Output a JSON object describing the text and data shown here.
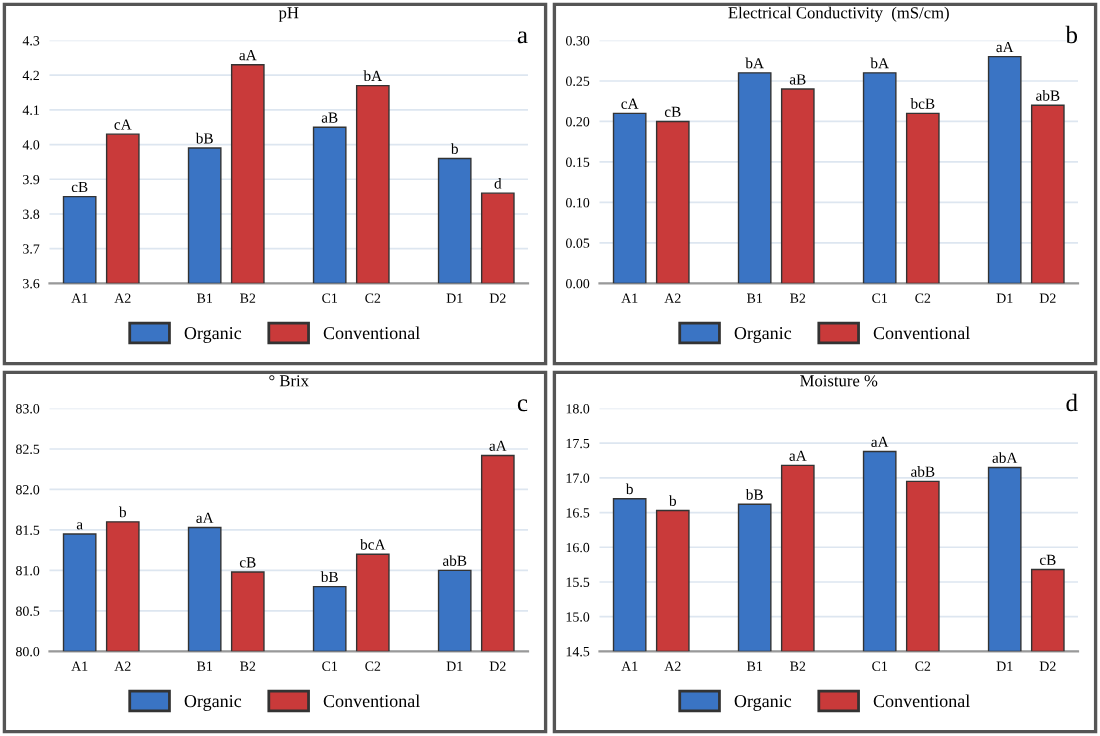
{
  "chart_data": [
    {
      "type": "bar",
      "title": "pH",
      "categories": [
        "A1",
        "A2",
        "B1",
        "B2",
        "C1",
        "C2",
        "D1",
        "D2"
      ],
      "series": [
        {
          "name": "Organic",
          "color": "#3a74c4",
          "values": [
            3.85,
            null,
            3.99,
            null,
            4.05,
            null,
            3.96,
            null
          ],
          "value_labels": [
            "cB",
            null,
            "bB",
            null,
            "aB",
            null,
            "b",
            null
          ]
        },
        {
          "name": "Conventional",
          "color": "#c93a3a",
          "values": [
            null,
            4.03,
            null,
            4.23,
            null,
            4.17,
            null,
            3.86
          ],
          "value_labels": [
            null,
            "cA",
            null,
            "aA",
            null,
            "bA",
            null,
            "d"
          ]
        }
      ],
      "ylim": [
        3.6,
        4.3
      ],
      "yticks": [
        {
          "value": 3.6,
          "label": "3.6"
        },
        {
          "value": 3.7,
          "label": "3.7"
        },
        {
          "value": 3.8,
          "label": "3.8"
        },
        {
          "value": 3.9,
          "label": "3.9"
        },
        {
          "value": 4.0,
          "label": "4.0"
        },
        {
          "value": 4.1,
          "label": "4.1"
        },
        {
          "value": 4.2,
          "label": "4.2"
        },
        {
          "value": 4.3,
          "label": "4.3"
        }
      ],
      "grid": "y",
      "legend": "bottom",
      "annotations": [
        "a"
      ]
    },
    {
      "type": "bar",
      "title": "Electrical Conductivity  (mS/cm)",
      "categories": [
        "A1",
        "A2",
        "B1",
        "B2",
        "C1",
        "C2",
        "D1",
        "D2"
      ],
      "series": [
        {
          "name": "Organic",
          "color": "#3a74c4",
          "values": [
            0.21,
            null,
            0.26,
            null,
            0.26,
            null,
            0.28,
            null
          ],
          "value_labels": [
            "cA",
            null,
            "bA",
            null,
            "bA",
            null,
            "aA",
            null
          ]
        },
        {
          "name": "Conventional",
          "color": "#c93a3a",
          "values": [
            null,
            0.2,
            null,
            0.24,
            null,
            0.21,
            null,
            0.22
          ],
          "value_labels": [
            null,
            "cB",
            null,
            "aB",
            null,
            "bcB",
            null,
            "abB"
          ]
        }
      ],
      "ylim": [
        0,
        0.3
      ],
      "yticks": [
        {
          "value": 0,
          "label": "0.00"
        },
        {
          "value": 0.05,
          "label": "0.05"
        },
        {
          "value": 0.1,
          "label": "0.10"
        },
        {
          "value": 0.15,
          "label": "0.15"
        },
        {
          "value": 0.2,
          "label": "0.20"
        },
        {
          "value": 0.25,
          "label": "0.25"
        },
        {
          "value": 0.3,
          "label": "0.30"
        }
      ],
      "grid": "y",
      "legend": "bottom",
      "annotations": [
        "b"
      ]
    },
    {
      "type": "bar",
      "title": "° Brix",
      "categories": [
        "A1",
        "A2",
        "B1",
        "B2",
        "C1",
        "C2",
        "D1",
        "D2"
      ],
      "series": [
        {
          "name": "Organic",
          "color": "#3a74c4",
          "values": [
            81.45,
            null,
            81.53,
            null,
            80.8,
            null,
            81.0,
            null
          ],
          "value_labels": [
            "a",
            null,
            "aA",
            null,
            "bB",
            null,
            "abB",
            null
          ]
        },
        {
          "name": "Conventional",
          "color": "#c93a3a",
          "values": [
            null,
            81.6,
            null,
            80.98,
            null,
            81.2,
            null,
            82.42
          ],
          "value_labels": [
            null,
            "b",
            null,
            "cB",
            null,
            "bcA",
            null,
            "aA"
          ]
        }
      ],
      "ylim": [
        80,
        83
      ],
      "yticks": [
        {
          "value": 80,
          "label": "80.0"
        },
        {
          "value": 80.5,
          "label": "80.5"
        },
        {
          "value": 81,
          "label": "81.0"
        },
        {
          "value": 81.5,
          "label": "81.5"
        },
        {
          "value": 82,
          "label": "82.0"
        },
        {
          "value": 82.5,
          "label": "82.5"
        },
        {
          "value": 83,
          "label": "83.0"
        }
      ],
      "grid": "y",
      "legend": "bottom",
      "annotations": [
        "c"
      ]
    },
    {
      "type": "bar",
      "title": "Moisture %",
      "categories": [
        "A1",
        "A2",
        "B1",
        "B2",
        "C1",
        "C2",
        "D1",
        "D2"
      ],
      "series": [
        {
          "name": "Organic",
          "color": "#3a74c4",
          "values": [
            16.7,
            null,
            16.62,
            null,
            17.38,
            null,
            17.15,
            null
          ],
          "value_labels": [
            "b",
            null,
            "bB",
            null,
            "aA",
            null,
            "abA",
            null
          ]
        },
        {
          "name": "Conventional",
          "color": "#c93a3a",
          "values": [
            null,
            16.53,
            null,
            17.18,
            null,
            16.95,
            null,
            15.68
          ],
          "value_labels": [
            null,
            "b",
            null,
            "aA",
            null,
            "abB",
            null,
            "cB"
          ]
        }
      ],
      "ylim": [
        14.5,
        18
      ],
      "yticks": [
        {
          "value": 14.5,
          "label": "14.5"
        },
        {
          "value": 15,
          "label": "15.0"
        },
        {
          "value": 15.5,
          "label": "15.5"
        },
        {
          "value": 16,
          "label": "16.0"
        },
        {
          "value": 16.5,
          "label": "16.5"
        },
        {
          "value": 17,
          "label": "17.0"
        },
        {
          "value": 17.5,
          "label": "17.5"
        },
        {
          "value": 18,
          "label": "18.0"
        }
      ],
      "grid": "y",
      "legend": "bottom",
      "annotations": [
        "d"
      ]
    }
  ]
}
